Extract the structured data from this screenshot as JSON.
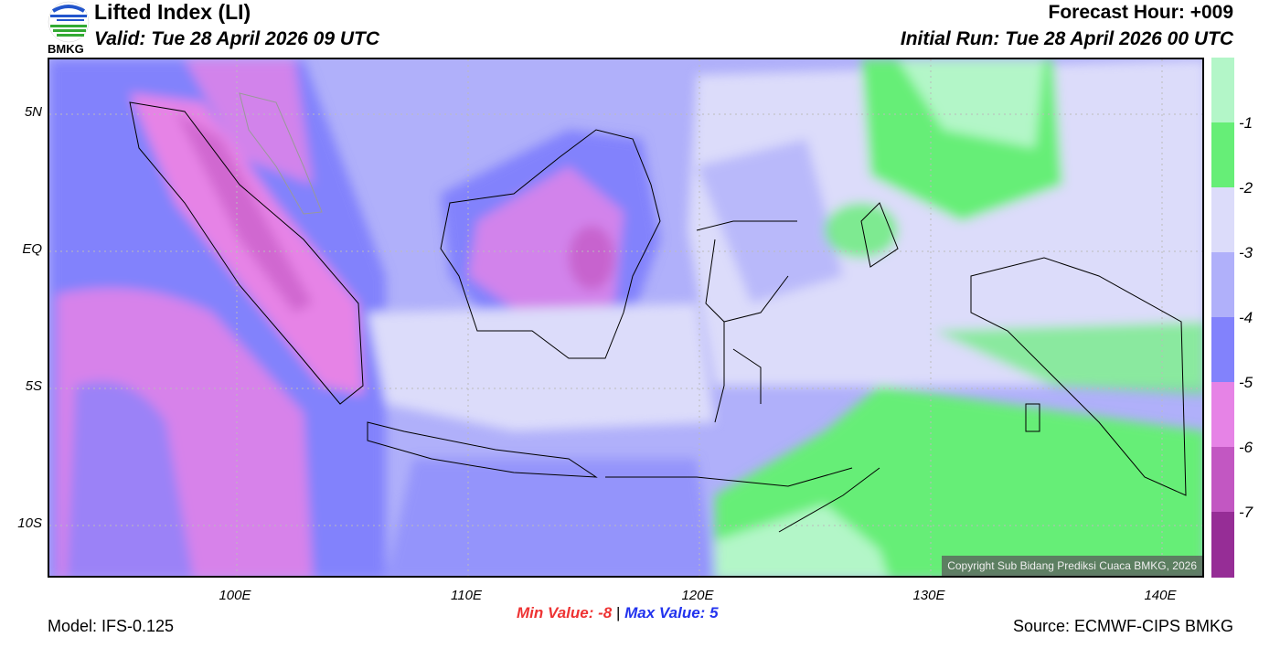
{
  "header": {
    "title": "Lifted Index (LI)",
    "valid": "Valid: Tue 28 April 2026 09 UTC",
    "forecast_hour": "Forecast Hour: +009",
    "initial_run": "Initial Run: Tue 28 April 2026 00 UTC",
    "logo_text": "BMKG"
  },
  "map": {
    "lat_labels": [
      "5N",
      "EQ",
      "5S",
      "10S"
    ],
    "lon_labels": [
      "100E",
      "110E",
      "120E",
      "130E",
      "140E"
    ],
    "extent": {
      "lon_min": 92,
      "lon_max": 142,
      "lat_min": -12,
      "lat_max": 7
    },
    "copyright": "Copyright Sub Bidang Prediksi Cuaca BMKG, 2026"
  },
  "legend": {
    "levels": [
      "-1",
      "-2",
      "-3",
      "-4",
      "-5",
      "-6",
      "-7"
    ],
    "colors": [
      "#b3f6c8",
      "#66ee77",
      "#dcdcfa",
      "#b0b0fa",
      "#8282fc",
      "#e683e6",
      "#c257c2",
      "#962d96"
    ]
  },
  "stats": {
    "min_label": "Min Value:",
    "min_value": "-8",
    "separator": "|",
    "max_label": "Max Value:",
    "max_value": "5"
  },
  "footer": {
    "model": "Model: IFS-0.125",
    "source": "Source: ECMWF-CIPS BMKG"
  }
}
